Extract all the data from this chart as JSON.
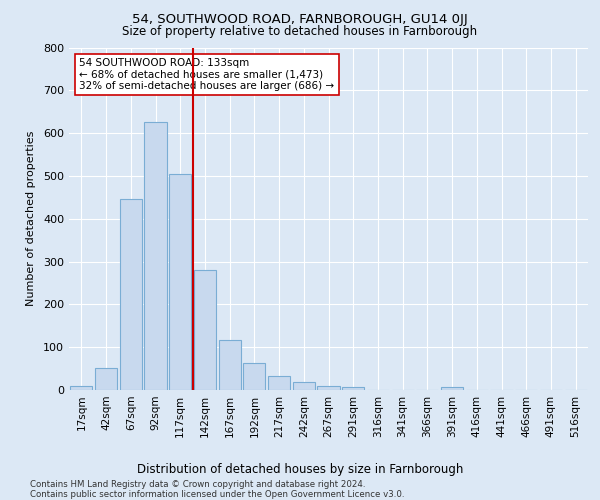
{
  "title1": "54, SOUTHWOOD ROAD, FARNBOROUGH, GU14 0JJ",
  "title2": "Size of property relative to detached houses in Farnborough",
  "xlabel": "Distribution of detached houses by size in Farnborough",
  "ylabel": "Number of detached properties",
  "bin_labels": [
    "17sqm",
    "42sqm",
    "67sqm",
    "92sqm",
    "117sqm",
    "142sqm",
    "167sqm",
    "192sqm",
    "217sqm",
    "242sqm",
    "267sqm",
    "291sqm",
    "316sqm",
    "341sqm",
    "366sqm",
    "391sqm",
    "416sqm",
    "441sqm",
    "466sqm",
    "491sqm",
    "516sqm"
  ],
  "bar_values": [
    10,
    52,
    447,
    625,
    505,
    280,
    117,
    62,
    33,
    18,
    10,
    8,
    0,
    0,
    0,
    7,
    0,
    0,
    0,
    0,
    0
  ],
  "bar_color": "#c8d9ee",
  "bar_edge_color": "#7aadd4",
  "vline_x": 4.5,
  "vline_color": "#cc0000",
  "annotation_text": "54 SOUTHWOOD ROAD: 133sqm\n← 68% of detached houses are smaller (1,473)\n32% of semi-detached houses are larger (686) →",
  "annotation_box_color": "white",
  "annotation_box_edge_color": "#cc0000",
  "ylim": [
    0,
    800
  ],
  "yticks": [
    0,
    100,
    200,
    300,
    400,
    500,
    600,
    700,
    800
  ],
  "footer1": "Contains HM Land Registry data © Crown copyright and database right 2024.",
  "footer2": "Contains public sector information licensed under the Open Government Licence v3.0.",
  "bg_color": "#dce8f5",
  "plot_bg_color": "#dce8f5",
  "grid_color": "white"
}
